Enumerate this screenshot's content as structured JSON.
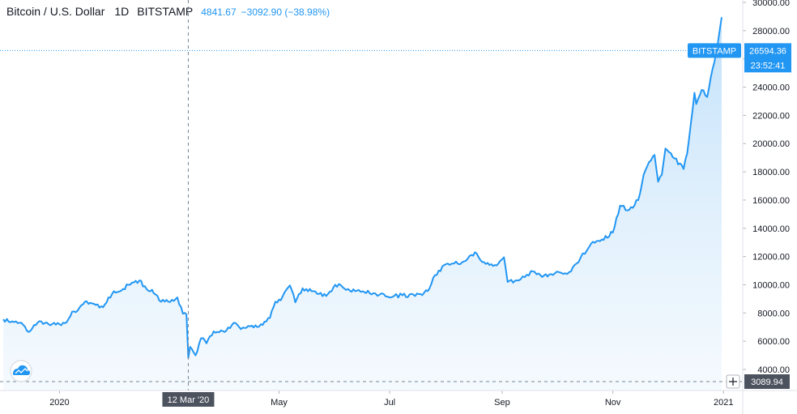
{
  "header": {
    "symbol": "Bitcoin / U.S. Dollar",
    "interval": "1D",
    "exchange": "BITSTAMP",
    "close": "4841.67",
    "change": "−3092.90 (−38.98%)"
  },
  "price_tag": {
    "label": "BITSTAMP",
    "price": "26594.36",
    "countdown": "23:52:41"
  },
  "crosshair": {
    "date_label": "12 Mar '20",
    "price_label": "3089.94"
  },
  "colors": {
    "line": "#2196f3",
    "fill_top": "#c9e4fb",
    "crosshair": "#758696",
    "tag_bg": "#2196f3"
  },
  "icons": {
    "logo": "tradingview-cloud-icon",
    "plus": "plus-icon"
  },
  "chart_data": {
    "type": "area",
    "title": "Bitcoin / U.S. Dollar",
    "xlabel": "",
    "ylabel": "",
    "ylim": [
      3000,
      30000
    ],
    "y_ticks": [
      "4000.00",
      "6000.00",
      "8000.00",
      "10000.00",
      "12000.00",
      "14000.00",
      "16000.00",
      "18000.00",
      "20000.00",
      "22000.00",
      "24000.00",
      "26000.00",
      "28000.00",
      "30000.00"
    ],
    "x_ticks": [
      {
        "date": "2020-01-01",
        "label": "2020"
      },
      {
        "date": "2020-05-01",
        "label": "May"
      },
      {
        "date": "2020-07-01",
        "label": "Jul"
      },
      {
        "date": "2020-09-01",
        "label": "Sep"
      },
      {
        "date": "2020-11-01",
        "label": "Nov"
      },
      {
        "date": "2021-01-01",
        "label": "2021"
      }
    ],
    "grid": false,
    "series": [
      {
        "x": [
          "2019-12-01",
          "2019-12-05",
          "2019-12-10",
          "2019-12-15",
          "2019-12-18",
          "2019-12-22",
          "2019-12-26",
          "2020-01-01",
          "2020-01-05",
          "2020-01-08",
          "2020-01-10",
          "2020-01-15",
          "2020-01-20",
          "2020-01-25",
          "2020-01-30",
          "2020-02-05",
          "2020-02-10",
          "2020-02-14",
          "2020-02-18",
          "2020-02-21",
          "2020-02-26",
          "2020-03-01",
          "2020-03-06",
          "2020-03-09",
          "2020-03-11",
          "2020-03-12",
          "2020-03-13",
          "2020-03-16",
          "2020-03-19",
          "2020-03-22",
          "2020-03-26",
          "2020-04-01",
          "2020-04-06",
          "2020-04-10",
          "2020-04-16",
          "2020-04-22",
          "2020-04-26",
          "2020-04-29",
          "2020-05-02",
          "2020-05-07",
          "2020-05-10",
          "2020-05-14",
          "2020-05-20",
          "2020-05-27",
          "2020-06-01",
          "2020-06-08",
          "2020-06-15",
          "2020-06-22",
          "2020-06-30",
          "2020-07-08",
          "2020-07-15",
          "2020-07-22",
          "2020-07-25",
          "2020-07-28",
          "2020-08-02",
          "2020-08-10",
          "2020-08-17",
          "2020-08-22",
          "2020-08-28",
          "2020-09-02",
          "2020-09-04",
          "2020-09-10",
          "2020-09-18",
          "2020-09-23",
          "2020-09-30",
          "2020-10-08",
          "2020-10-12",
          "2020-10-20",
          "2020-10-25",
          "2020-11-01",
          "2020-11-05",
          "2020-11-10",
          "2020-11-15",
          "2020-11-18",
          "2020-11-21",
          "2020-11-24",
          "2020-11-26",
          "2020-11-28",
          "2020-11-30",
          "2020-12-05",
          "2020-12-10",
          "2020-12-12",
          "2020-12-16",
          "2020-12-17",
          "2020-12-20",
          "2020-12-23",
          "2020-12-25",
          "2020-12-28",
          "2020-12-31"
        ],
        "y": [
          7550,
          7350,
          7300,
          6650,
          7150,
          7400,
          7200,
          7200,
          7350,
          8100,
          8050,
          8800,
          8650,
          8400,
          9350,
          9700,
          10150,
          10300,
          9700,
          9650,
          8800,
          8800,
          9100,
          7950,
          7900,
          4840,
          5600,
          5000,
          6200,
          5850,
          6700,
          6650,
          7300,
          6850,
          7100,
          7150,
          7650,
          8800,
          8900,
          9950,
          8750,
          9750,
          9550,
          9200,
          10000,
          9700,
          9500,
          9400,
          9150,
          9250,
          9200,
          9550,
          10500,
          11000,
          11500,
          11600,
          12300,
          11600,
          11400,
          11950,
          10200,
          10300,
          10950,
          10550,
          10800,
          10900,
          11500,
          12900,
          13100,
          13700,
          15600,
          15300,
          16000,
          17800,
          18700,
          19200,
          17300,
          17800,
          19650,
          18950,
          18200,
          19300,
          23600,
          22800,
          23800,
          23300,
          24700,
          26500,
          28950
        ]
      }
    ]
  }
}
